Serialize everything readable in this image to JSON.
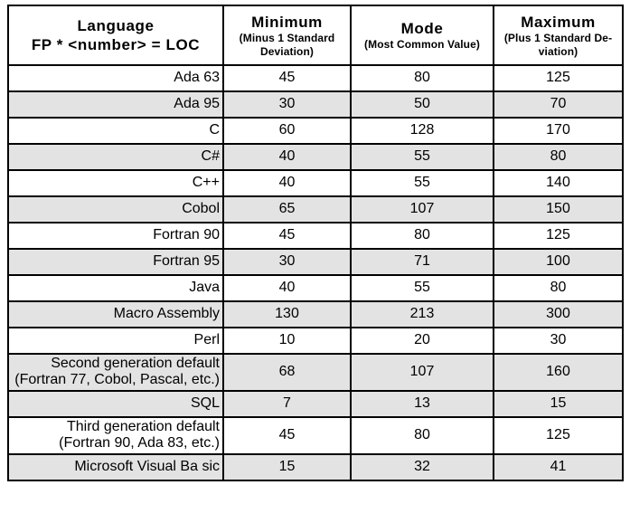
{
  "colors": {
    "row_shade": "#e3e3e3",
    "border": "#000000",
    "background": "#ffffff",
    "text": "#000000"
  },
  "table": {
    "columns": [
      {
        "title": "Language",
        "subtitle": "FP * <number> = LOC"
      },
      {
        "title": "Minimum",
        "subtitle": "(Minus 1 Standard Deviation)"
      },
      {
        "title": "Mode",
        "subtitle": "(Most Common Value)"
      },
      {
        "title": "Maximum",
        "subtitle": "(Plus 1 Standard De-viation)"
      }
    ],
    "rows": [
      {
        "language": "Ada 63",
        "minimum": "45",
        "mode": "80",
        "maximum": "125",
        "shaded": false
      },
      {
        "language": "Ada 95",
        "minimum": "30",
        "mode": "50",
        "maximum": "70",
        "shaded": true
      },
      {
        "language": "C",
        "minimum": "60",
        "mode": "128",
        "maximum": "170",
        "shaded": false
      },
      {
        "language": "C#",
        "minimum": "40",
        "mode": "55",
        "maximum": "80",
        "shaded": true
      },
      {
        "language": "C++",
        "minimum": "40",
        "mode": "55",
        "maximum": "140",
        "shaded": false
      },
      {
        "language": "Cobol",
        "minimum": "65",
        "mode": "107",
        "maximum": "150",
        "shaded": true
      },
      {
        "language": "Fortran 90",
        "minimum": "45",
        "mode": "80",
        "maximum": "125",
        "shaded": false
      },
      {
        "language": "Fortran 95",
        "minimum": "30",
        "mode": "71",
        "maximum": "100",
        "shaded": true
      },
      {
        "language": "Java",
        "minimum": "40",
        "mode": "55",
        "maximum": "80",
        "shaded": false
      },
      {
        "language": "Macro Assembly",
        "minimum": "130",
        "mode": "213",
        "maximum": "300",
        "shaded": true
      },
      {
        "language": "Perl",
        "minimum": "10",
        "mode": "20",
        "maximum": "30",
        "shaded": false
      },
      {
        "language": "Second generation default (Fortran 77, Cobol, Pascal, etc.)",
        "minimum": "68",
        "mode": "107",
        "maximum": "160",
        "shaded": true
      },
      {
        "language": "SQL",
        "minimum": "7",
        "mode": "13",
        "maximum": "15",
        "shaded": true
      },
      {
        "language": "Third generation default (Fortran 90, Ada 83, etc.)",
        "minimum": "45",
        "mode": "80",
        "maximum": "125",
        "shaded": false
      },
      {
        "language": "Microsoft Visual Ba sic",
        "minimum": "15",
        "mode": "32",
        "maximum": "41",
        "shaded": true
      }
    ]
  }
}
